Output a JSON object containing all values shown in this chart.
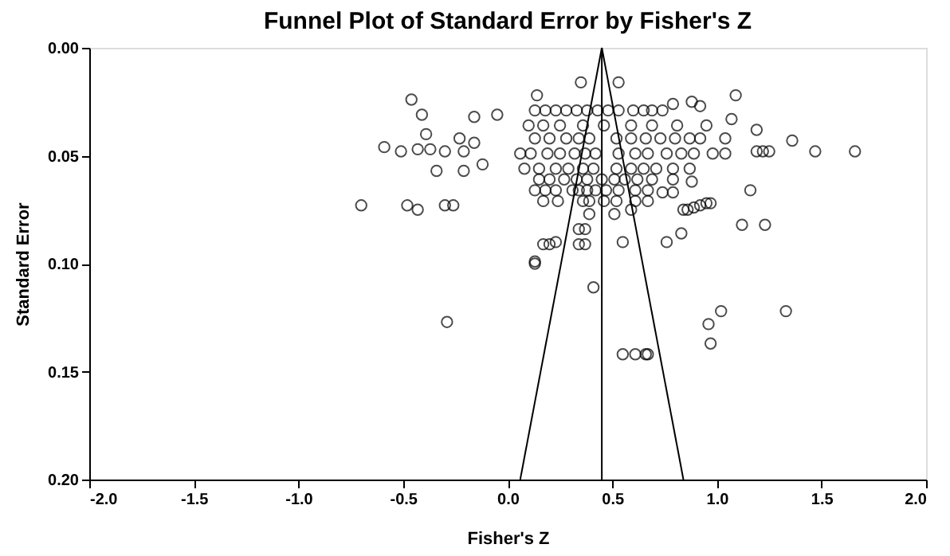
{
  "chart_data": {
    "type": "scatter",
    "title": "Funnel Plot of Standard Error by Fisher's Z",
    "xlabel": "Fisher's Z",
    "ylabel": "Standard Error",
    "xlim": [
      -2.0,
      2.0
    ],
    "ylim": [
      0.2,
      0.0
    ],
    "xticks": [
      {
        "value": -2.0,
        "label": "-2.0"
      },
      {
        "value": -1.5,
        "label": "-1.5"
      },
      {
        "value": -1.0,
        "label": "-1.0"
      },
      {
        "value": -0.5,
        "label": "-0.5"
      },
      {
        "value": 0.0,
        "label": "0.0"
      },
      {
        "value": 0.5,
        "label": "0.5"
      },
      {
        "value": 1.0,
        "label": "1.0"
      },
      {
        "value": 1.5,
        "label": "1.5"
      },
      {
        "value": 2.0,
        "label": "2.0"
      }
    ],
    "yticks": [
      {
        "value": 0.0,
        "label": "0.00"
      },
      {
        "value": 0.05,
        "label": "0.05"
      },
      {
        "value": 0.1,
        "label": "0.10"
      },
      {
        "value": 0.15,
        "label": "0.15"
      },
      {
        "value": 0.2,
        "label": "0.20"
      }
    ],
    "grid": false,
    "series": [
      {
        "color": "#000000",
        "marker": "circle",
        "x": [
          -0.46,
          -0.41,
          -0.59,
          -0.51,
          -0.43,
          -0.39,
          -0.37,
          -0.34,
          -0.3,
          -0.23,
          -0.21,
          -0.21,
          -0.16,
          -0.16,
          -0.12,
          -0.05,
          -0.7,
          -0.48,
          -0.43,
          -0.3,
          -0.26,
          -0.29,
          0.35,
          0.53,
          1.09,
          0.14,
          0.88,
          0.92,
          0.79,
          1.07,
          1.19,
          1.36,
          1.47,
          1.66,
          1.19,
          1.22,
          1.25,
          1.16,
          1.12,
          1.23,
          0.97,
          0.95,
          0.92,
          0.89,
          0.86,
          0.84,
          0.83,
          0.76,
          0.55,
          0.88,
          0.79,
          0.74,
          0.67,
          0.59,
          0.51,
          0.39,
          0.34,
          0.37,
          0.37,
          0.34,
          0.23,
          0.2,
          0.17,
          0.13,
          0.13,
          0.41,
          1.02,
          1.33,
          0.96,
          0.97,
          0.55,
          0.61,
          0.66,
          0.67,
          0.13,
          0.18,
          0.23,
          0.28,
          0.33,
          0.38,
          0.43,
          0.48,
          0.53,
          0.6,
          0.65,
          0.69,
          0.74,
          0.1,
          0.17,
          0.25,
          0.36,
          0.46,
          0.59,
          0.69,
          0.81,
          0.95,
          0.13,
          0.2,
          0.28,
          0.34,
          0.39,
          0.52,
          0.59,
          0.66,
          0.73,
          0.8,
          0.87,
          0.92,
          1.04,
          0.06,
          0.11,
          0.19,
          0.25,
          0.32,
          0.37,
          0.42,
          0.53,
          0.61,
          0.67,
          0.76,
          0.83,
          0.89,
          0.98,
          1.04,
          0.08,
          0.15,
          0.23,
          0.29,
          0.36,
          0.41,
          0.52,
          0.59,
          0.65,
          0.71,
          0.79,
          0.87,
          0.15,
          0.2,
          0.27,
          0.33,
          0.38,
          0.45,
          0.51,
          0.56,
          0.62,
          0.69,
          0.79,
          0.13,
          0.18,
          0.23,
          0.31,
          0.34,
          0.38,
          0.42,
          0.47,
          0.53,
          0.61,
          0.67,
          0.17,
          0.24,
          0.36,
          0.39,
          0.46,
          0.52,
          0.61
        ],
        "values": [
          0.024,
          0.031,
          0.046,
          0.048,
          0.047,
          0.04,
          0.047,
          0.057,
          0.048,
          0.042,
          0.048,
          0.057,
          0.032,
          0.044,
          0.054,
          0.031,
          0.073,
          0.073,
          0.075,
          0.073,
          0.073,
          0.127,
          0.016,
          0.016,
          0.022,
          0.022,
          0.025,
          0.027,
          0.026,
          0.033,
          0.038,
          0.043,
          0.048,
          0.048,
          0.048,
          0.048,
          0.048,
          0.066,
          0.082,
          0.082,
          0.072,
          0.072,
          0.073,
          0.074,
          0.075,
          0.075,
          0.086,
          0.09,
          0.09,
          0.062,
          0.067,
          0.067,
          0.071,
          0.075,
          0.077,
          0.077,
          0.084,
          0.084,
          0.091,
          0.091,
          0.09,
          0.091,
          0.091,
          0.099,
          0.1,
          0.111,
          0.122,
          0.122,
          0.128,
          0.137,
          0.142,
          0.142,
          0.142,
          0.142,
          0.029,
          0.029,
          0.029,
          0.029,
          0.029,
          0.029,
          0.029,
          0.029,
          0.029,
          0.029,
          0.029,
          0.029,
          0.029,
          0.036,
          0.036,
          0.036,
          0.036,
          0.036,
          0.036,
          0.036,
          0.036,
          0.036,
          0.042,
          0.042,
          0.042,
          0.042,
          0.042,
          0.042,
          0.042,
          0.042,
          0.042,
          0.042,
          0.042,
          0.042,
          0.042,
          0.049,
          0.049,
          0.049,
          0.049,
          0.049,
          0.049,
          0.049,
          0.049,
          0.049,
          0.049,
          0.049,
          0.049,
          0.049,
          0.049,
          0.049,
          0.056,
          0.056,
          0.056,
          0.056,
          0.056,
          0.056,
          0.056,
          0.056,
          0.056,
          0.056,
          0.056,
          0.056,
          0.061,
          0.061,
          0.061,
          0.061,
          0.061,
          0.061,
          0.061,
          0.061,
          0.061,
          0.061,
          0.061,
          0.066,
          0.066,
          0.066,
          0.066,
          0.066,
          0.066,
          0.066,
          0.066,
          0.066,
          0.066,
          0.066,
          0.071,
          0.071,
          0.071,
          0.071,
          0.071,
          0.071,
          0.071
        ]
      },
      {
        "type": "line",
        "color": "#000000",
        "marker": "none",
        "x": [
          0.06,
          0.45
        ],
        "values": [
          0.2,
          0.0
        ]
      },
      {
        "type": "line",
        "color": "#000000",
        "marker": "none",
        "x": [
          0.84,
          0.45
        ],
        "values": [
          0.2,
          0.0
        ]
      }
    ],
    "ref_lines": [
      {
        "axis": "x",
        "value": 0.45,
        "color": "#000000"
      }
    ]
  }
}
